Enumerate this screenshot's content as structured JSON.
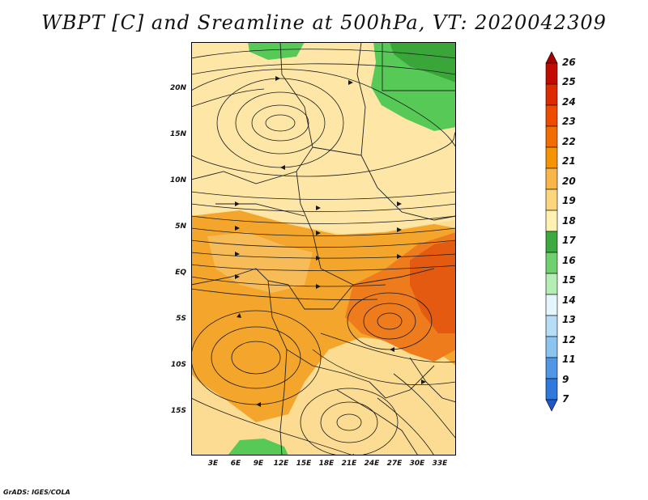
{
  "title": "WBPT [C] and Sreamline at 500hPa, VT: 2020042309",
  "credit": "GrADS: IGES/COLA",
  "y_axis": [
    "20N",
    "15N",
    "10N",
    "5N",
    "EQ",
    "5S",
    "10S",
    "15S"
  ],
  "x_axis": [
    "3E",
    "6E",
    "9E",
    "12E",
    "15E",
    "18E",
    "21E",
    "24E",
    "27E",
    "30E",
    "33E"
  ],
  "colorbar": {
    "labels": [
      "26",
      "25",
      "24",
      "23",
      "22",
      "21",
      "20",
      "19",
      "18",
      "17",
      "16",
      "15",
      "14",
      "13",
      "12",
      "11",
      "9",
      "7"
    ],
    "colors": [
      "#a50000",
      "#c20a00",
      "#dd2a00",
      "#ee4a00",
      "#f26d00",
      "#f59300",
      "#f8b548",
      "#fbd67e",
      "#fff2b0",
      "#3ea93e",
      "#6fd06f",
      "#b4eeb4",
      "#e4f6fb",
      "#b6dcf6",
      "#8bc4ef",
      "#4f97e4",
      "#2f78dc",
      "#1e57c8"
    ]
  },
  "colors": {
    "land": "#f9d98a",
    "warm": "#f4a62c",
    "hot": "#ea6a12",
    "green": "#57c957",
    "stream": "#1a1a1a"
  }
}
